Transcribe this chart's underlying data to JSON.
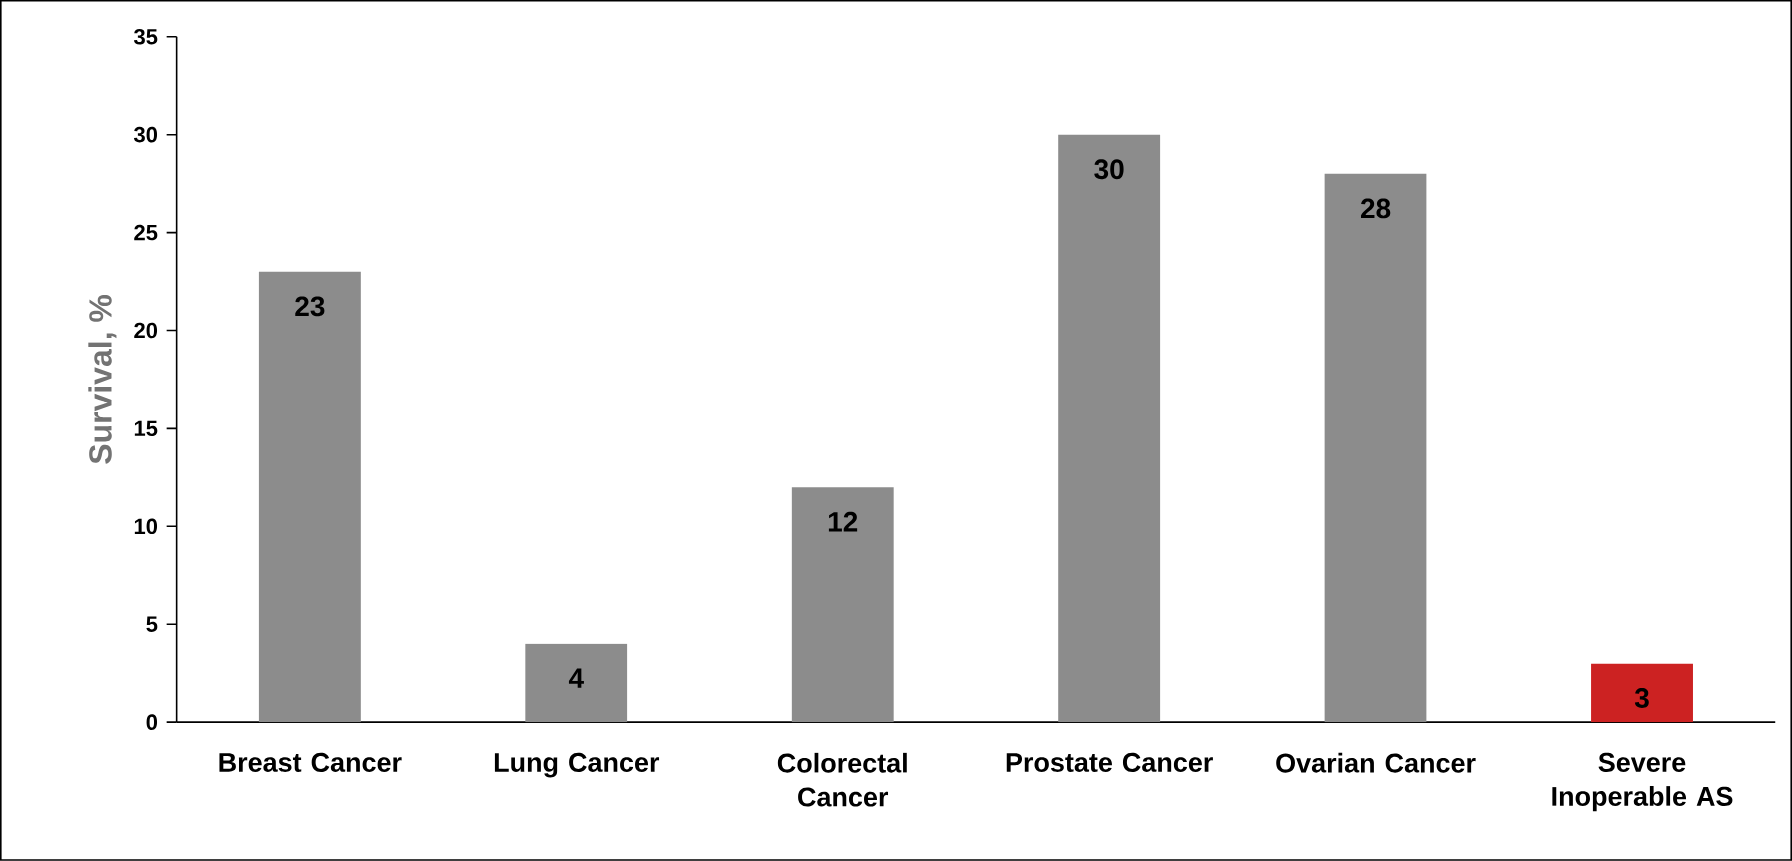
{
  "chart_data": {
    "type": "bar",
    "ylabel": "Survival, %",
    "categories": [
      "Breast Cancer",
      "Lung Cancer",
      "Colorectal Cancer",
      "Prostate Cancer",
      "Ovarian Cancer",
      "Severe Inoperable AS"
    ],
    "values": [
      23,
      4,
      12,
      30,
      28,
      3
    ],
    "colors": [
      "#8c8c8c",
      "#8c8c8c",
      "#8c8c8c",
      "#8c8c8c",
      "#8c8c8c",
      "#cc2222"
    ],
    "ylim": [
      0,
      35
    ],
    "yticks": [
      0,
      5,
      10,
      15,
      20,
      25,
      30,
      35
    ],
    "data_labels": true,
    "grid": false
  }
}
